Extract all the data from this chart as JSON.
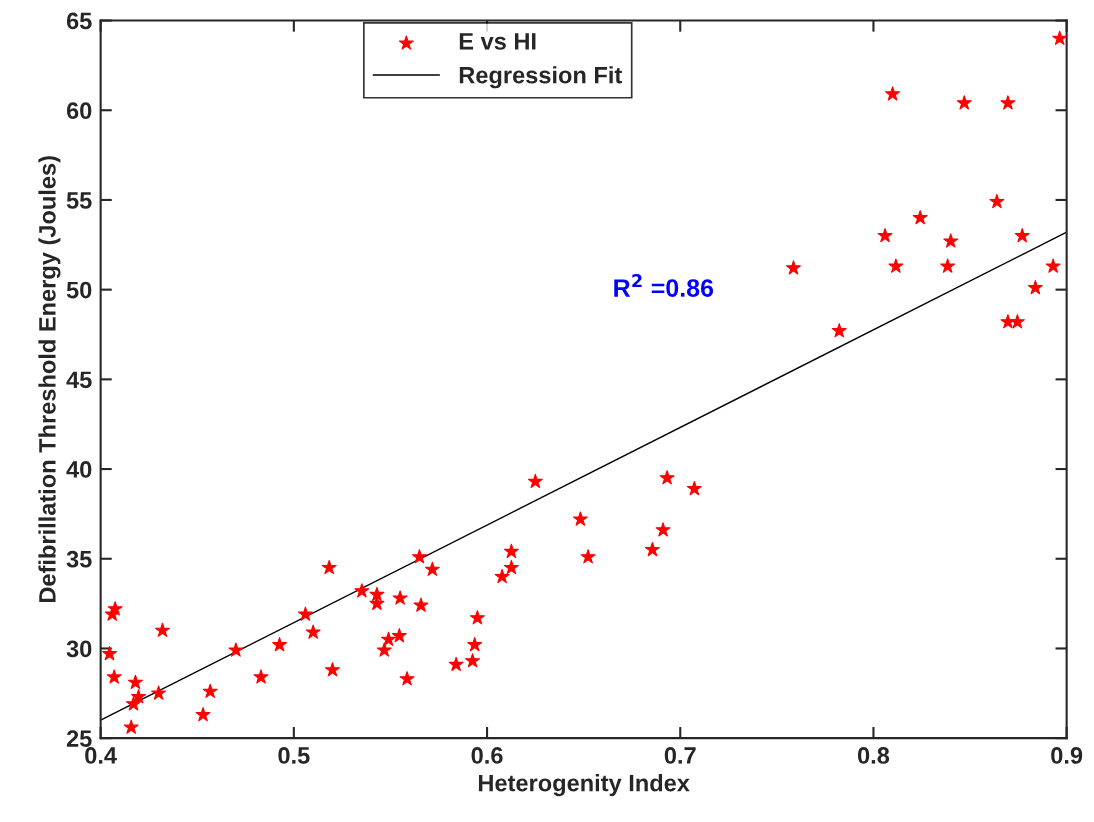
{
  "chart_data": {
    "type": "scatter",
    "xlabel": "Heterogenity Index",
    "ylabel": "Defibrillation Threshold Energy (Joules)",
    "annotations": [
      "R$^{2}$ =0.86"
    ],
    "xlim": [
      0.4,
      0.9
    ],
    "ylim": [
      25,
      65
    ],
    "xticks": [
      0.4,
      0.5,
      0.6,
      0.7,
      0.8,
      0.9
    ],
    "yticks": [
      25,
      30,
      35,
      40,
      45,
      50,
      55,
      60,
      65
    ],
    "grid": false,
    "legend": "top",
    "series": [
      {
        "name": "E vs HI",
        "marker": "star",
        "color": "#ff0000",
        "x": [
          0.4075,
          0.406,
          0.4046,
          0.432,
          0.407,
          0.418,
          0.4196,
          0.417,
          0.43,
          0.4158,
          0.453,
          0.4567,
          0.47,
          0.483,
          0.4926,
          0.506,
          0.51,
          0.5183,
          0.52,
          0.5352,
          0.543,
          0.543,
          0.555,
          0.5658,
          0.565,
          0.5717,
          0.549,
          0.5546,
          0.5468,
          0.5586,
          0.584,
          0.5925,
          0.5936,
          0.595,
          0.6078,
          0.6126,
          0.6126,
          0.625,
          0.6483,
          0.6523,
          0.6932,
          0.7073,
          0.6911,
          0.6856,
          0.8964,
          0.8099,
          0.847,
          0.8696,
          0.8639,
          0.8242,
          0.806,
          0.84,
          0.877,
          0.7586,
          0.8116,
          0.8384,
          0.893,
          0.8838,
          0.8696,
          0.8745,
          0.7823
        ],
        "values": [
          32.2,
          31.9,
          29.7,
          31.0,
          28.4,
          28.1,
          27.3,
          26.9,
          27.5,
          25.6,
          26.3,
          27.6,
          29.9,
          28.4,
          30.2,
          31.9,
          30.9,
          34.5,
          28.8,
          33.2,
          33.0,
          32.5,
          32.8,
          32.4,
          35.1,
          34.4,
          30.5,
          30.7,
          29.9,
          28.3,
          29.1,
          29.3,
          30.2,
          31.7,
          34.0,
          34.5,
          35.4,
          39.3,
          37.2,
          35.1,
          39.5,
          38.9,
          36.6,
          35.5,
          64.0,
          60.9,
          60.4,
          60.4,
          54.9,
          54.0,
          53.0,
          52.7,
          53.0,
          51.2,
          51.3,
          51.3,
          51.3,
          50.1,
          48.2,
          48.2,
          47.7
        ]
      },
      {
        "name": "Regression Fit",
        "type": "line",
        "marker": "none",
        "line_style": "solid",
        "color": "#000000",
        "x": [
          0.4,
          0.9
        ],
        "values": [
          26.0,
          53.2
        ]
      }
    ]
  }
}
